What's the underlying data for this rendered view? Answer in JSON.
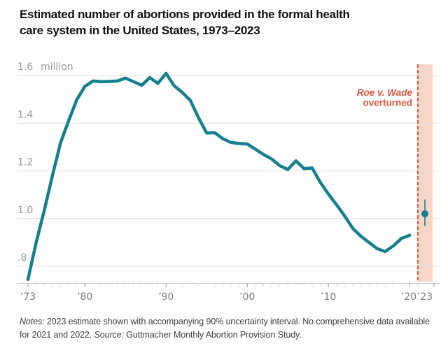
{
  "header": {
    "title_line1": "Estimated number of abortions provided in the formal health",
    "title_line2": "care system in the United States, 1973–2023"
  },
  "chart_data": {
    "type": "line",
    "title": "Estimated number of abortions provided in the formal health care system in the United States, 1973–2023",
    "ylabel": "million",
    "xlabel": "",
    "ylim": [
      0.73,
      1.65
    ],
    "xlim": [
      1973,
      2023
    ],
    "grid": "horizontal",
    "legend_position": "none",
    "yticks": [
      {
        "value": 1.6,
        "label": "1.6"
      },
      {
        "value": 1.4,
        "label": "1.4"
      },
      {
        "value": 1.2,
        "label": "1.2"
      },
      {
        "value": 1.0,
        "label": "1.0"
      },
      {
        "value": 0.8,
        "label": ".8"
      }
    ],
    "xticks": [
      {
        "year": 1973,
        "label": "’73"
      },
      {
        "year": 1980,
        "label": "’80"
      },
      {
        "year": 1990,
        "label": "’90"
      },
      {
        "year": 2000,
        "label": "’00"
      },
      {
        "year": 2010,
        "label": "’10"
      },
      {
        "year": 2020,
        "label": "’20"
      },
      {
        "year": 2023,
        "label": "’23"
      }
    ],
    "series": [
      {
        "name": "Estimated abortions (millions)",
        "x": [
          1973,
          1974,
          1975,
          1976,
          1977,
          1978,
          1979,
          1980,
          1981,
          1982,
          1983,
          1984,
          1985,
          1986,
          1987,
          1988,
          1989,
          1990,
          1991,
          1992,
          1993,
          1994,
          1995,
          1996,
          1997,
          1998,
          1999,
          2000,
          2001,
          2002,
          2003,
          2004,
          2005,
          2006,
          2007,
          2008,
          2009,
          2010,
          2011,
          2012,
          2013,
          2014,
          2015,
          2016,
          2017,
          2018,
          2019,
          2020
        ],
        "values": [
          0.745,
          0.899,
          1.034,
          1.179,
          1.317,
          1.41,
          1.498,
          1.554,
          1.577,
          1.574,
          1.575,
          1.577,
          1.589,
          1.574,
          1.559,
          1.591,
          1.567,
          1.609,
          1.557,
          1.529,
          1.495,
          1.423,
          1.359,
          1.36,
          1.335,
          1.319,
          1.315,
          1.313,
          1.291,
          1.269,
          1.25,
          1.222,
          1.206,
          1.242,
          1.21,
          1.212,
          1.152,
          1.103,
          1.058,
          1.011,
          0.959,
          0.926,
          0.9,
          0.874,
          0.862,
          0.886,
          0.917,
          0.93
        ]
      }
    ],
    "estimate_2023": {
      "year": 2023,
      "value": 1.02,
      "interval": [
        0.97,
        1.08
      ]
    },
    "annotation": {
      "line1": "Roe v. Wade",
      "line2": "overturned"
    },
    "no_data_years": [
      2021,
      2022
    ],
    "colors": {
      "line": "#167F8E",
      "accent": "#E2563E",
      "band": "#F7D6C8",
      "grid": "#DFDFDF",
      "axis": "#C9C9C9",
      "tick": "#D8D8D8",
      "decade_tick": "#9A9A9A",
      "xtick_label": "#7E7E7E",
      "ytick_label": "#9A9A9A"
    }
  },
  "footer": {
    "notes_label": "Notes:",
    "notes_text": " 2023 estimate shown with accompanying 90% uncertainty interval. No comprehensive data available for 2021 and 2022. ",
    "source_label": "Source:",
    "source_text": " Guttmacher Monthly Abortion Provision Study."
  }
}
